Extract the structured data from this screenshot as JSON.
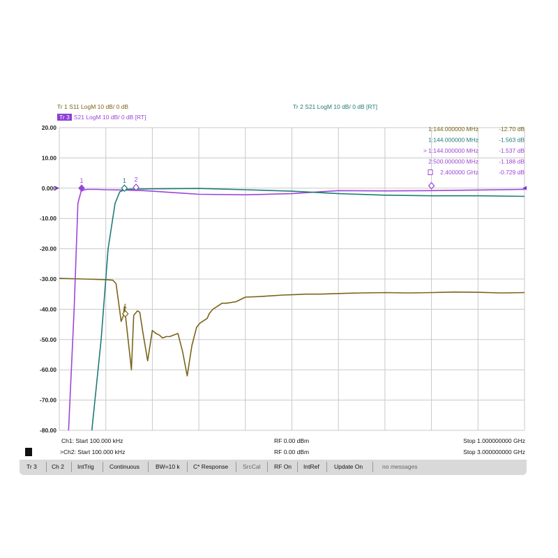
{
  "traces_header": {
    "tr1": "Tr 1  S11 LogM  10 dB/  0 dB",
    "tr2": "Tr 2  S21 LogM  10 dB/  0 dB [RT]",
    "tr3_box": "Tr 3",
    "tr3": "S21 LogM  10 dB/  0 dB [RT]"
  },
  "colors": {
    "s11": "#7a6318",
    "s21_ch1": "#9b45d8",
    "s21_ch2": "#1f7a78",
    "grid": "#c8c8c8"
  },
  "markers_table": [
    {
      "text": "1:144.000000 MHz",
      "value": "-12.70 dB",
      "color": "#7a6318"
    },
    {
      "text": "1:144.000000 MHz",
      "value": "-1.563 dB",
      "color": "#1f7a78"
    },
    {
      "text": "> 1:144.000000 MHz",
      "value": "-1.537 dB",
      "color": "#9b45d8"
    },
    {
      "text": "2:500.000000 MHz",
      "value": "-1.188 dB",
      "color": "#9b45d8"
    },
    {
      "text": "2.400000 GHz",
      "value": "-0.729 dB",
      "color": "#9b45d8"
    }
  ],
  "chart_data": {
    "type": "line",
    "ylim": [
      -80,
      20
    ],
    "yticks": [
      "20.00",
      "10.00",
      "0.000",
      "-10.00",
      "-20.00",
      "-30.00",
      "-40.00",
      "-50.00",
      "-60.00",
      "-70.00",
      "-80.00"
    ],
    "x_divisions": 10,
    "series": [
      {
        "trace": "S11",
        "color": "#7a6318",
        "x_div": [
          0,
          1.0,
          1.15,
          1.22,
          1.33,
          1.38,
          1.4,
          1.5,
          1.55,
          1.6,
          1.68,
          1.73,
          1.8,
          1.9,
          2.0,
          2.08,
          2.15,
          2.22,
          2.3,
          2.38,
          2.46,
          2.55,
          2.65,
          2.75,
          2.85,
          2.95,
          3.0,
          3.03,
          3.08,
          3.13,
          3.18,
          3.22,
          3.3,
          3.4,
          3.5,
          3.6,
          3.8,
          4.0,
          4.3,
          4.6,
          4.8,
          5.0,
          5.3,
          5.6,
          6.0,
          6.5,
          7.0,
          7.5,
          8.0,
          8.5,
          9.0,
          9.5,
          10.0
        ],
        "y_db": [
          -29.8,
          -30.2,
          -30.4,
          -31.5,
          -44,
          -42,
          -39,
          -53,
          -60,
          -42,
          -40.5,
          -41,
          -48,
          -57,
          -47,
          -48,
          -48.5,
          -49.5,
          -49,
          -49,
          -48.5,
          -48,
          -54,
          -62,
          -52,
          -46,
          -45,
          -44.5,
          -44,
          -43.5,
          -43,
          -41.5,
          -40,
          -39,
          -38,
          -38,
          -37.5,
          -36,
          -35.8,
          -35.5,
          -35.3,
          -35.2,
          -35,
          -35,
          -34.8,
          -34.6,
          -34.5,
          -34.6,
          -34.5,
          -34.3,
          -34.4,
          -34.6,
          -34.5
        ]
      },
      {
        "trace": "S21 (Ch1)",
        "color": "#9b45d8",
        "x_div": [
          0.2,
          0.32,
          0.4,
          0.47,
          0.52,
          0.6,
          0.8,
          1.0,
          1.4,
          1.8,
          2.0,
          3.0,
          4.0,
          5.0,
          6.0,
          7.0,
          8.0,
          9.0,
          10.0
        ],
        "y_db": [
          -80,
          -40,
          -5,
          -1,
          -0.6,
          -0.4,
          -0.4,
          -0.5,
          -0.6,
          -0.8,
          -1.0,
          -2.0,
          -2.2,
          -1.8,
          -0.8,
          -0.9,
          -0.8,
          -0.6,
          -0.4
        ]
      },
      {
        "trace": "S21 (Ch2)",
        "color": "#1f7a78",
        "x_div": [
          0.7,
          0.9,
          1.05,
          1.2,
          1.3,
          1.4,
          1.55,
          1.7,
          2.0,
          3.0,
          4.0,
          5.0,
          6.0,
          7.0,
          8.0,
          9.0,
          10.0
        ],
        "y_db": [
          -80,
          -50,
          -20,
          -5,
          -1.2,
          -0.5,
          -0.3,
          -0.3,
          -0.2,
          -0.1,
          -0.5,
          -1.0,
          -1.8,
          -2.3,
          -2.5,
          -2.5,
          -2.7
        ]
      }
    ],
    "markers": [
      {
        "label": "1",
        "x_div": 0.48,
        "y_db": 0.0,
        "color": "#9b45d8",
        "filled": true
      },
      {
        "label": "1",
        "x_div": 1.4,
        "y_db": 0.0,
        "color": "#1f7a78",
        "filled": false
      },
      {
        "label": "2",
        "x_div": 1.65,
        "y_db": 0.3,
        "color": "#9b45d8",
        "filled": false
      },
      {
        "label": "1",
        "x_div": 1.42,
        "y_db": -41.5,
        "color": "#7a6318",
        "filled": false
      },
      {
        "label": "",
        "x_div": 8.0,
        "y_db": 0.8,
        "color": "#9b45d8",
        "filled": false
      }
    ]
  },
  "footer": {
    "ch1_start": "Ch1: Start 100.000 kHz",
    "ch1_rf": "RF 0.00 dBm",
    "ch1_stop": "Stop 1.000000000 GHz",
    "ch2_start": ">Ch2: Start 100.000 kHz",
    "ch2_rf": "RF 0.00 dBm",
    "ch2_stop": "Stop 3.000000000 GHz"
  },
  "status_bar": {
    "items": [
      "Tr 3",
      "Ch 2",
      "IntTrig",
      "Continuous",
      "BW=10 k",
      "C* Response",
      "SrcCal",
      "RF On",
      "IntRef",
      "Update On"
    ],
    "message": "no messages"
  }
}
